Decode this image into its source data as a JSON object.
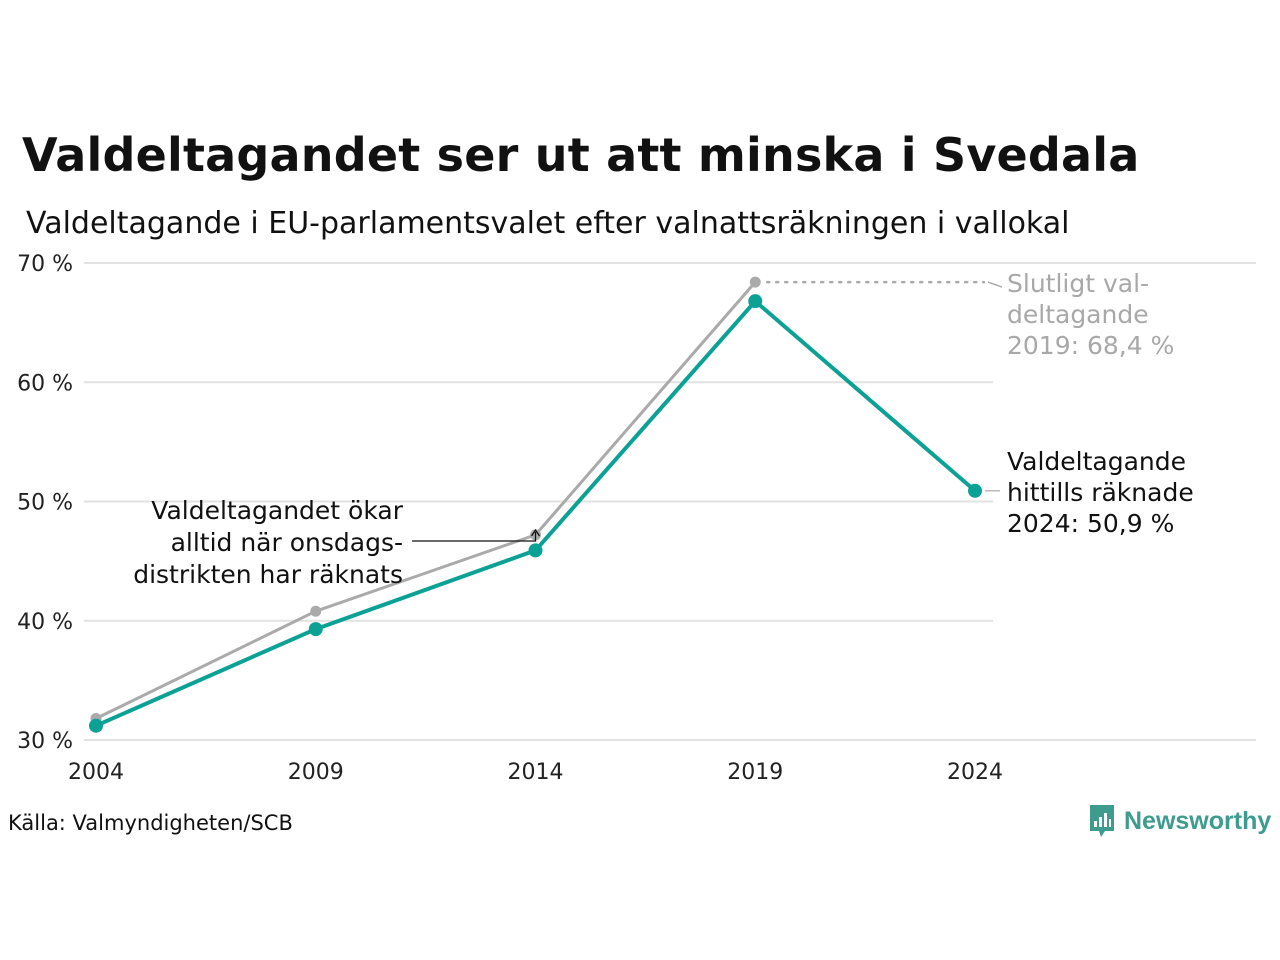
{
  "title": "Valdeltagandet ser ut att minska i Svedala",
  "subtitle": "Valdeltagande i EU-parlamentsvalet efter valnattsräkningen i vallokal",
  "source": "Källa: Valmyndigheten/SCB",
  "brand": {
    "name": "Newsworthy",
    "color": "#3e9c8f",
    "icon": "newsworthy-logo-icon"
  },
  "chart_data": {
    "type": "line",
    "x": [
      2004,
      2009,
      2014,
      2019,
      2024
    ],
    "series": [
      {
        "key": "final",
        "values": [
          31.8,
          40.8,
          47.2,
          68.4,
          null
        ],
        "color": "#aaaaaa"
      },
      {
        "key": "preliminary",
        "values": [
          31.2,
          39.3,
          45.9,
          66.8,
          50.9
        ],
        "color": "#0ba195"
      }
    ],
    "ylim": [
      30,
      70
    ],
    "yticks": [
      30,
      40,
      50,
      60,
      70
    ],
    "ytick_labels": [
      "30 %",
      "40 %",
      "50 %",
      "60 %",
      "70 %"
    ],
    "xtick_labels": [
      "2004",
      "2009",
      "2014",
      "2019",
      "2024"
    ],
    "grid": true,
    "annotations": {
      "final_2019": [
        "Slutligt val-",
        "deltagande",
        "2019: 68,4 %"
      ],
      "current_2024": [
        "Valdeltagande",
        "hittills räknade",
        "2024: 50,9 %"
      ],
      "wednesday": [
        "Valdeltagandet ökar",
        "alltid när onsdags-",
        "distrikten har räknats"
      ]
    }
  }
}
